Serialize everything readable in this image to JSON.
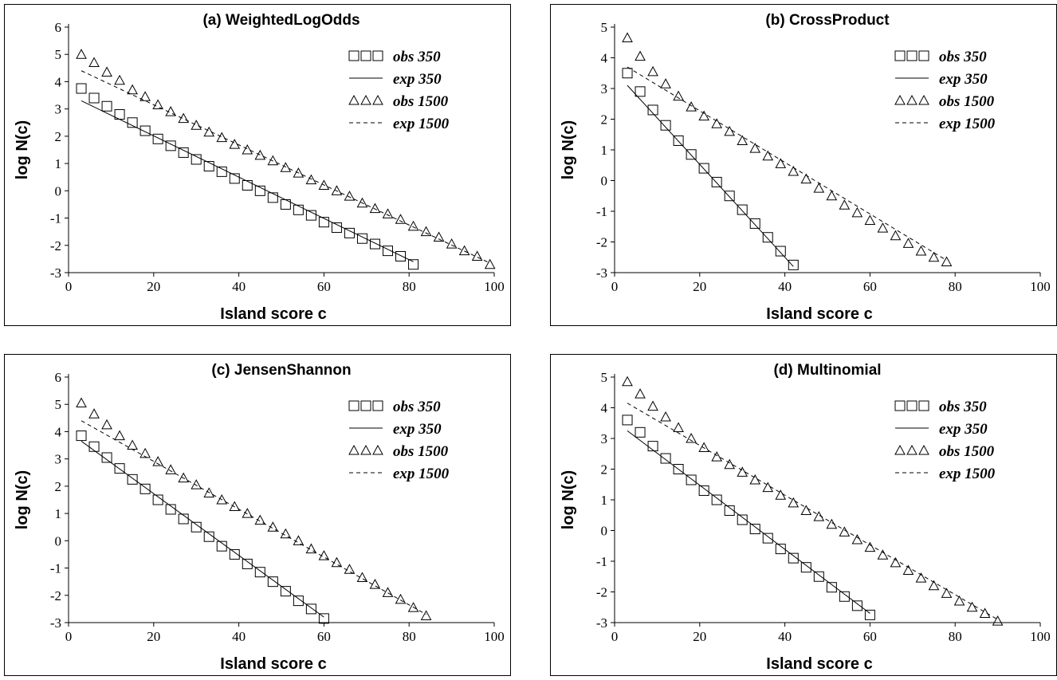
{
  "chart_data": [
    {
      "type": "scatter",
      "title": "(a) WeightedLogOdds",
      "xlabel": "Island score c",
      "ylabel": "log N(c)",
      "xlim": [
        0,
        100
      ],
      "ylim": [
        -3,
        6
      ],
      "xticks": [
        "0",
        "20",
        "40",
        "60",
        "80",
        "100"
      ],
      "yticks": [
        "-3",
        "-2",
        "-1",
        "0",
        "1",
        "2",
        "3",
        "4",
        "5",
        "6"
      ],
      "legend": [
        "obs 350",
        "exp 350",
        "obs 1500",
        "exp 1500"
      ],
      "legend_position": "top-right",
      "series": [
        {
          "name": "obs 350",
          "marker": "square",
          "x": [
            3,
            6,
            9,
            12,
            15,
            18,
            21,
            24,
            27,
            30,
            33,
            36,
            39,
            42,
            45,
            48,
            51,
            54,
            57,
            60,
            63,
            66,
            69,
            72,
            75,
            78,
            81
          ],
          "y": [
            3.75,
            3.4,
            3.1,
            2.8,
            2.5,
            2.2,
            1.9,
            1.65,
            1.4,
            1.15,
            0.9,
            0.7,
            0.45,
            0.2,
            0,
            -0.25,
            -0.5,
            -0.7,
            -0.9,
            -1.15,
            -1.35,
            -1.55,
            -1.75,
            -1.95,
            -2.2,
            -2.4,
            -2.7
          ]
        },
        {
          "name": "exp 350",
          "line": "solid",
          "x": [
            3,
            81
          ],
          "y": [
            3.3,
            -2.6
          ]
        },
        {
          "name": "obs 1500",
          "marker": "triangle",
          "x": [
            3,
            6,
            9,
            12,
            15,
            18,
            21,
            24,
            27,
            30,
            33,
            36,
            39,
            42,
            45,
            48,
            51,
            54,
            57,
            60,
            63,
            66,
            69,
            72,
            75,
            78,
            81,
            84,
            87,
            90,
            93,
            96,
            99
          ],
          "y": [
            5,
            4.7,
            4.35,
            4.05,
            3.7,
            3.45,
            3.15,
            2.9,
            2.65,
            2.4,
            2.15,
            1.95,
            1.7,
            1.5,
            1.3,
            1.1,
            0.85,
            0.65,
            0.4,
            0.2,
            0,
            -0.2,
            -0.45,
            -0.65,
            -0.85,
            -1.05,
            -1.3,
            -1.5,
            -1.7,
            -1.95,
            -2.2,
            -2.4,
            -2.7
          ]
        },
        {
          "name": "exp 1500",
          "line": "dashed",
          "x": [
            3,
            99
          ],
          "y": [
            4.4,
            -2.65
          ]
        }
      ]
    },
    {
      "type": "scatter",
      "title": "(b) CrossProduct",
      "xlabel": "Island score c",
      "ylabel": "log N(c)",
      "xlim": [
        0,
        100
      ],
      "ylim": [
        -3,
        5
      ],
      "xticks": [
        "0",
        "20",
        "40",
        "60",
        "80",
        "100"
      ],
      "yticks": [
        "-3",
        "-2",
        "-1",
        "0",
        "1",
        "2",
        "3",
        "4",
        "5"
      ],
      "legend": [
        "obs 350",
        "exp 350",
        "obs 1500",
        "exp 1500"
      ],
      "legend_position": "top-right",
      "series": [
        {
          "name": "obs 350",
          "marker": "square",
          "x": [
            3,
            6,
            9,
            12,
            15,
            18,
            21,
            24,
            27,
            30,
            33,
            36,
            39,
            42
          ],
          "y": [
            3.5,
            2.9,
            2.3,
            1.8,
            1.3,
            0.85,
            0.4,
            -0.05,
            -0.5,
            -0.95,
            -1.4,
            -1.85,
            -2.3,
            -2.75
          ]
        },
        {
          "name": "exp 350",
          "line": "solid",
          "x": [
            3,
            42
          ],
          "y": [
            3.1,
            -2.8
          ]
        },
        {
          "name": "obs 1500",
          "marker": "triangle",
          "x": [
            3,
            6,
            9,
            12,
            15,
            18,
            21,
            24,
            27,
            30,
            33,
            36,
            39,
            42,
            45,
            48,
            51,
            54,
            57,
            60,
            63,
            66,
            69,
            72,
            75,
            78
          ],
          "y": [
            4.65,
            4.05,
            3.55,
            3.15,
            2.75,
            2.4,
            2.1,
            1.85,
            1.6,
            1.3,
            1.05,
            0.8,
            0.55,
            0.3,
            0.05,
            -0.25,
            -0.5,
            -0.8,
            -1.05,
            -1.3,
            -1.55,
            -1.8,
            -2.05,
            -2.3,
            -2.5,
            -2.65
          ]
        },
        {
          "name": "exp 1500",
          "line": "dashed",
          "x": [
            3,
            78
          ],
          "y": [
            3.7,
            -2.6
          ]
        }
      ]
    },
    {
      "type": "scatter",
      "title": "(c) JensenShannon",
      "xlabel": "Island score c",
      "ylabel": "log N(c)",
      "xlim": [
        0,
        100
      ],
      "ylim": [
        -3,
        6
      ],
      "xticks": [
        "0",
        "20",
        "40",
        "60",
        "80",
        "100"
      ],
      "yticks": [
        "-3",
        "-2",
        "-1",
        "0",
        "1",
        "2",
        "3",
        "4",
        "5",
        "6"
      ],
      "legend": [
        "obs 350",
        "exp 350",
        "obs 1500",
        "exp 1500"
      ],
      "legend_position": "top-right",
      "series": [
        {
          "name": "obs 350",
          "marker": "square",
          "x": [
            3,
            6,
            9,
            12,
            15,
            18,
            21,
            24,
            27,
            30,
            33,
            36,
            39,
            42,
            45,
            48,
            51,
            54,
            57,
            60
          ],
          "y": [
            3.85,
            3.45,
            3.05,
            2.65,
            2.25,
            1.9,
            1.5,
            1.15,
            0.8,
            0.5,
            0.15,
            -0.2,
            -0.5,
            -0.85,
            -1.15,
            -1.5,
            -1.85,
            -2.2,
            -2.5,
            -2.85
          ]
        },
        {
          "name": "exp 350",
          "line": "solid",
          "x": [
            3,
            60
          ],
          "y": [
            3.65,
            -2.8
          ]
        },
        {
          "name": "obs 1500",
          "marker": "triangle",
          "x": [
            3,
            6,
            9,
            12,
            15,
            18,
            21,
            24,
            27,
            30,
            33,
            36,
            39,
            42,
            45,
            48,
            51,
            54,
            57,
            60,
            63,
            66,
            69,
            72,
            75,
            78,
            81,
            84
          ],
          "y": [
            5.05,
            4.65,
            4.25,
            3.85,
            3.5,
            3.2,
            2.9,
            2.6,
            2.3,
            2.05,
            1.75,
            1.5,
            1.25,
            1,
            0.75,
            0.5,
            0.25,
            0,
            -0.3,
            -0.55,
            -0.8,
            -1.05,
            -1.35,
            -1.6,
            -1.9,
            -2.15,
            -2.45,
            -2.75
          ]
        },
        {
          "name": "exp 1500",
          "line": "dashed",
          "x": [
            3,
            84
          ],
          "y": [
            4.4,
            -2.7
          ]
        }
      ]
    },
    {
      "type": "scatter",
      "title": "(d) Multinomial",
      "xlabel": "Island score c",
      "ylabel": "log N(c)",
      "xlim": [
        0,
        100
      ],
      "ylim": [
        -3,
        5
      ],
      "xticks": [
        "0",
        "20",
        "40",
        "60",
        "80",
        "100"
      ],
      "yticks": [
        "-3",
        "-2",
        "-1",
        "0",
        "1",
        "2",
        "3",
        "4",
        "5"
      ],
      "legend": [
        "obs 350",
        "exp 350",
        "obs 1500",
        "exp 1500"
      ],
      "legend_position": "top-right",
      "series": [
        {
          "name": "obs 350",
          "marker": "square",
          "x": [
            3,
            6,
            9,
            12,
            15,
            18,
            21,
            24,
            27,
            30,
            33,
            36,
            39,
            42,
            45,
            48,
            51,
            54,
            57,
            60
          ],
          "y": [
            3.6,
            3.2,
            2.75,
            2.35,
            2,
            1.65,
            1.3,
            1,
            0.65,
            0.35,
            0.05,
            -0.25,
            -0.6,
            -0.9,
            -1.2,
            -1.5,
            -1.85,
            -2.15,
            -2.45,
            -2.75
          ]
        },
        {
          "name": "exp 350",
          "line": "solid",
          "x": [
            3,
            60
          ],
          "y": [
            3.25,
            -2.7
          ]
        },
        {
          "name": "obs 1500",
          "marker": "triangle",
          "x": [
            3,
            6,
            9,
            12,
            15,
            18,
            21,
            24,
            27,
            30,
            33,
            36,
            39,
            42,
            45,
            48,
            51,
            54,
            57,
            60,
            63,
            66,
            69,
            72,
            75,
            78,
            81,
            84,
            87,
            90
          ],
          "y": [
            4.85,
            4.45,
            4.05,
            3.7,
            3.35,
            3,
            2.7,
            2.4,
            2.15,
            1.9,
            1.65,
            1.4,
            1.15,
            0.9,
            0.65,
            0.45,
            0.2,
            -0.05,
            -0.3,
            -0.55,
            -0.8,
            -1.05,
            -1.3,
            -1.55,
            -1.8,
            -2.05,
            -2.3,
            -2.5,
            -2.7,
            -2.95
          ]
        },
        {
          "name": "exp 1500",
          "line": "dashed",
          "x": [
            3,
            90
          ],
          "y": [
            4.15,
            -2.9
          ]
        }
      ]
    }
  ]
}
